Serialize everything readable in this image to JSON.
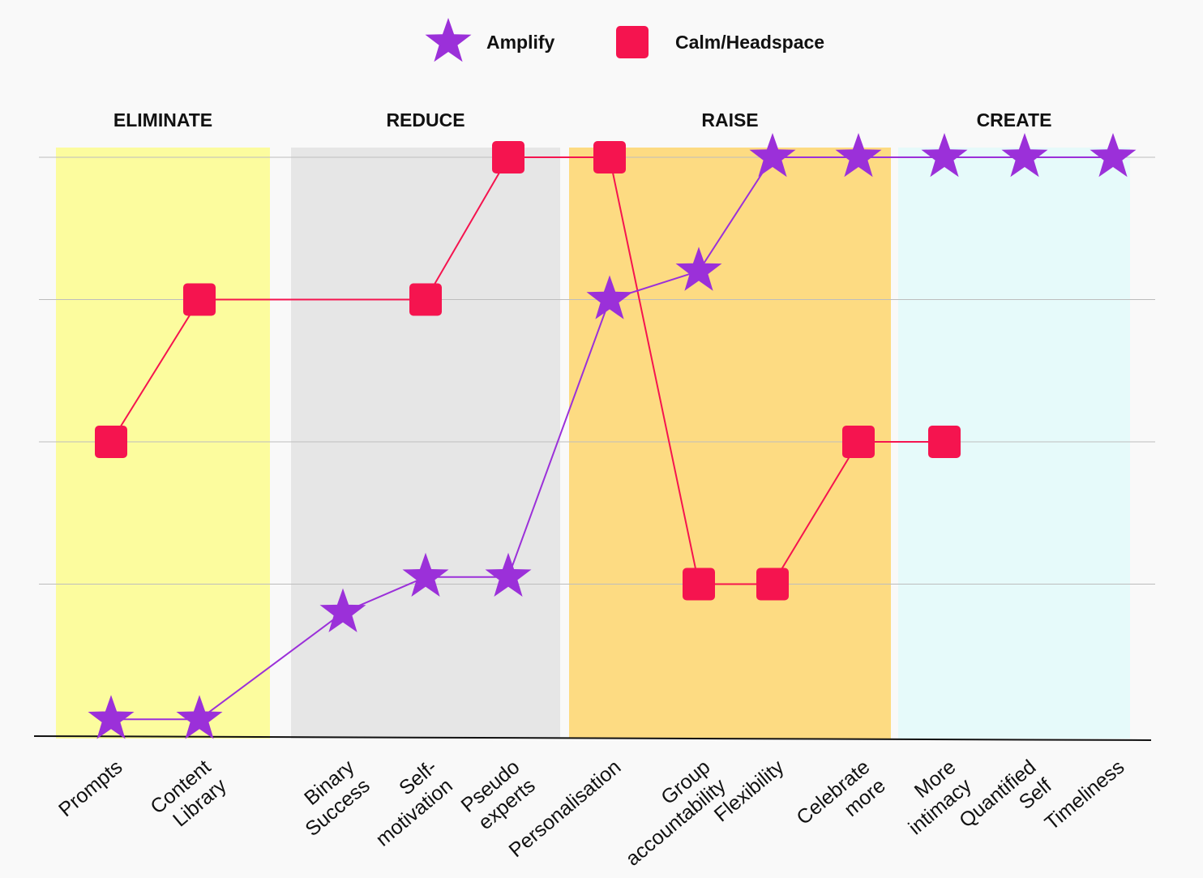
{
  "chart_data": {
    "type": "line",
    "title": "",
    "xlabel": "",
    "ylabel": "",
    "ylim": [
      0,
      4
    ],
    "grid": true,
    "legend_position": "top-center",
    "categories": [
      [
        "Prompts"
      ],
      [
        "Content",
        "Library"
      ],
      [
        "Binary",
        "Success"
      ],
      [
        "Self-",
        "motivation"
      ],
      [
        "Pseudo",
        "experts"
      ],
      [
        "Personalisation"
      ],
      [
        "Group",
        "accountability"
      ],
      [
        "Flexibility"
      ],
      [
        "Celebrate",
        "more"
      ],
      [
        "More",
        "intimacy"
      ],
      [
        "Quantified",
        "Self"
      ],
      [
        "Timeliness"
      ]
    ],
    "sections": [
      {
        "label": "ELIMINATE",
        "color": "#fcfc9e",
        "from": 0,
        "to": 1
      },
      {
        "label": "REDUCE",
        "color": "#e6e6e6",
        "from": 2,
        "to": 4
      },
      {
        "label": "RAISE",
        "color": "#fddb82",
        "from": 5,
        "to": 8
      },
      {
        "label": "CREATE",
        "color": "#e6fafa",
        "from": 9,
        "to": 11
      }
    ],
    "series": [
      {
        "name": "Amplify",
        "marker": "star",
        "color": "#9b30d9",
        "values": [
          0.05,
          0.05,
          0.8,
          1.05,
          1.05,
          3.0,
          3.2,
          4.0,
          4.0,
          4.0,
          4.0,
          4.0
        ]
      },
      {
        "name": "Calm/Headspace",
        "marker": "square",
        "color": "#f5144f",
        "values": [
          2.0,
          3.0,
          null,
          3.0,
          4.0,
          4.0,
          1.0,
          1.0,
          2.0,
          2.0,
          null,
          null
        ]
      }
    ]
  }
}
